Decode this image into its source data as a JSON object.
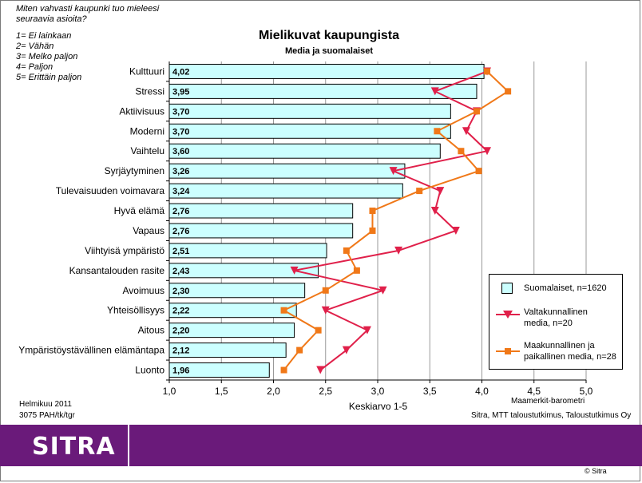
{
  "question": {
    "lines": [
      "Miten vahvasti kaupunki tuo mieleesi",
      "seuraavia asioita?"
    ],
    "scale": [
      "1= Ei lainkaan",
      "2= Vähän",
      "3= Melko paljon",
      "4= Paljon",
      "5= Erittäin paljon"
    ]
  },
  "footer": {
    "left_line1": "Helmikuu 2011",
    "left_line2": "3075 PAH/tk/tgr",
    "right_line1": "Maamerkit-barometri",
    "right_line2": "Sitra, MTT taloustutkimus, Taloustutkimus Oy"
  },
  "brand": {
    "logo": "SITRA",
    "copyright": "© Sitra",
    "color": "#6a1a7a"
  },
  "chart_data": {
    "type": "bar",
    "orientation": "horizontal",
    "title": "Mielikuvat kaupungista",
    "subtitle": "Media ja suomalaiset",
    "xlabel": "Keskiarvo 1-5",
    "xlim": [
      1.0,
      5.0
    ],
    "xticks": [
      "1,0",
      "1,5",
      "2,0",
      "2,5",
      "3,0",
      "3,5",
      "4,0",
      "4,5",
      "5,0"
    ],
    "grid": "vertical",
    "legend_position": "right",
    "categories": [
      "Kulttuuri",
      "Stressi",
      "Aktiivisuus",
      "Moderni",
      "Vaihtelu",
      "Syrjäytyminen",
      "Tulevaisuuden voimavara",
      "Hyvä elämä",
      "Vapaus",
      "Viihtyisä ympäristö",
      "Kansantalouden rasite",
      "Avoimuus",
      "Yhteisöllisyys",
      "Aitous",
      "Ympäristöystävällinen elämäntapa",
      "Luonto"
    ],
    "series": [
      {
        "name": "Suomalaiset, n=1620",
        "kind": "bar",
        "color": "#ccffff",
        "values": [
          4.02,
          3.95,
          3.7,
          3.7,
          3.6,
          3.26,
          3.24,
          2.76,
          2.76,
          2.51,
          2.43,
          2.3,
          2.22,
          2.2,
          2.12,
          1.96
        ],
        "labels": [
          "4,02",
          "3,95",
          "3,70",
          "3,70",
          "3,60",
          "3,26",
          "3,24",
          "2,76",
          "2,76",
          "2,51",
          "2,43",
          "2,30",
          "2,22",
          "2,20",
          "2,12",
          "1,96"
        ]
      },
      {
        "name": "Valtakunnallinen media, n=20",
        "kind": "line",
        "marker": "triangle-down",
        "color": "#e0204a",
        "values": [
          4.05,
          3.55,
          3.95,
          3.85,
          4.05,
          3.15,
          3.6,
          3.55,
          3.75,
          3.2,
          2.2,
          3.05,
          2.5,
          2.9,
          2.7,
          2.45
        ]
      },
      {
        "name": "Maakunnallinen ja paikallinen media, n=28",
        "kind": "line",
        "marker": "square",
        "color": "#f07818",
        "values": [
          4.05,
          4.25,
          3.95,
          3.57,
          3.8,
          3.97,
          3.4,
          2.95,
          2.95,
          2.7,
          2.8,
          2.5,
          2.1,
          2.43,
          2.25,
          2.1
        ]
      }
    ]
  }
}
